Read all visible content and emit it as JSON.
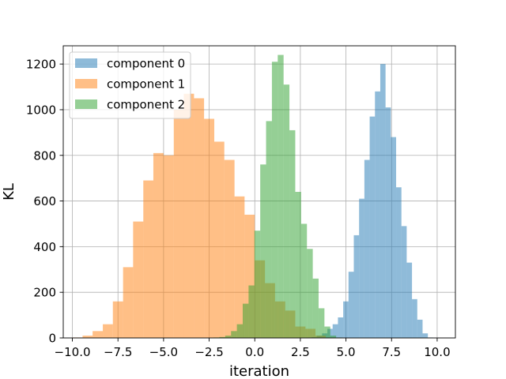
{
  "chart_data": {
    "type": "histogram",
    "title": "",
    "xlabel": "iteration",
    "ylabel": "KL",
    "xlim": [
      -10.5,
      11.0
    ],
    "ylim": [
      0,
      1280
    ],
    "grid": true,
    "legend_position": "top-left",
    "xticks": [
      -10.0,
      -7.5,
      -5.0,
      -2.5,
      0.0,
      2.5,
      5.0,
      7.5,
      10.0
    ],
    "xtick_labels": [
      "−10.0",
      "−7.5",
      "−5.0",
      "−2.5",
      "0.0",
      "2.5",
      "5.0",
      "7.5",
      "10.0"
    ],
    "yticks": [
      0,
      200,
      400,
      600,
      800,
      1000,
      1200
    ],
    "ytick_labels": [
      "0",
      "200",
      "400",
      "600",
      "800",
      "1000",
      "1200"
    ],
    "series": [
      {
        "name": "component 0",
        "color": "#1f77b4",
        "edges": [
          2.82,
          3.11,
          3.4,
          3.69,
          3.98,
          4.27,
          4.56,
          4.85,
          5.14,
          5.43,
          5.72,
          6.01,
          6.3,
          6.59,
          6.88,
          7.17,
          7.46,
          7.75,
          8.04,
          8.33,
          8.62,
          8.91,
          9.2,
          9.49,
          9.78
        ],
        "counts": [
          2,
          4,
          10,
          20,
          40,
          60,
          90,
          160,
          290,
          450,
          610,
          780,
          970,
          1080,
          1200,
          1010,
          880,
          660,
          490,
          330,
          170,
          80,
          20,
          2
        ]
      },
      {
        "name": "component 1",
        "color": "#ff7f0e",
        "edges": [
          -10.0,
          -9.44,
          -8.89,
          -8.33,
          -7.78,
          -7.22,
          -6.67,
          -6.11,
          -5.56,
          -5.0,
          -4.44,
          -3.89,
          -3.33,
          -2.78,
          -2.22,
          -1.67,
          -1.11,
          -0.56,
          0.0,
          0.56,
          1.11,
          1.67,
          2.22,
          2.78,
          3.33,
          3.89,
          4.44,
          5.0
        ],
        "counts": [
          2,
          10,
          30,
          60,
          160,
          310,
          510,
          690,
          810,
          800,
          1000,
          1070,
          1050,
          960,
          860,
          780,
          620,
          540,
          340,
          240,
          160,
          120,
          50,
          40,
          10,
          2,
          1
        ]
      },
      {
        "name": "component 2",
        "color": "#2ca02c",
        "edges": [
          -2.26,
          -1.94,
          -1.62,
          -1.3,
          -0.98,
          -0.66,
          -0.34,
          -0.02,
          0.3,
          0.62,
          0.94,
          1.26,
          1.58,
          1.9,
          2.22,
          2.54,
          2.86,
          3.18,
          3.5,
          3.82,
          4.14,
          4.46,
          4.78
        ],
        "counts": [
          2,
          4,
          10,
          30,
          60,
          150,
          230,
          470,
          760,
          950,
          1210,
          1240,
          1110,
          910,
          640,
          500,
          390,
          260,
          130,
          50,
          10,
          2
        ]
      }
    ]
  }
}
